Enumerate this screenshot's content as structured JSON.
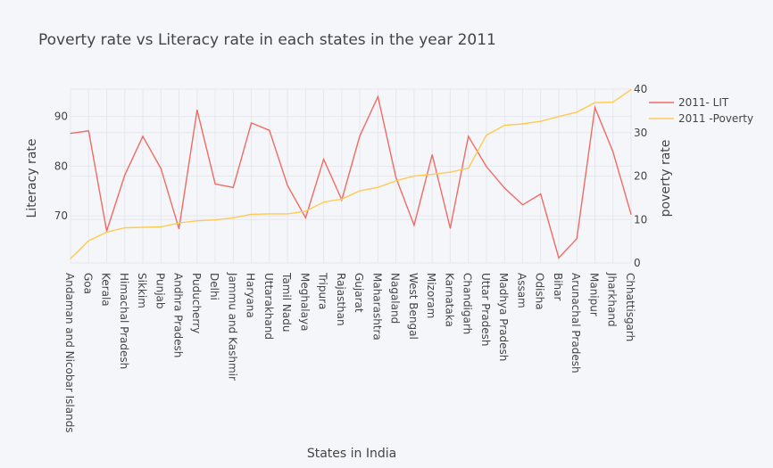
{
  "chart_data": {
    "type": "line",
    "title": "Poverty rate vs Literacy rate in each states in the year 2011",
    "xlabel": "States in India",
    "ylabel_left": "Literacy rate",
    "ylabel_right": "poverty rate",
    "ylim_left": [
      60.5,
      95.5
    ],
    "ylim_right": [
      0,
      40
    ],
    "yticks_left": [
      70,
      80,
      90
    ],
    "yticks_right": [
      0,
      10,
      20,
      30,
      40
    ],
    "categories": [
      "Andaman and Nicobar Islands",
      "Goa",
      "Kerala",
      "Himachal Pradesh",
      "Sikkim",
      "Punjab",
      "Andhra Pradesh",
      "Puducherry",
      "Delhi",
      "Jammu and Kashmir",
      "Haryana",
      "Uttarakhand",
      "Tamil Nadu",
      "Meghalaya",
      "Tripura",
      "Rajasthan",
      "Gujarat",
      "Maharashtra",
      "Nagaland",
      "West Bengal",
      "Mizoram",
      "Karnataka",
      "Chandigarh",
      "Uttar Pradesh",
      "Madhya Pradesh",
      "Assam",
      "Odisha",
      "Bihar",
      "Arunachal Pradesh",
      "Manipur",
      "Jharkhand",
      "Chhattisgarh"
    ],
    "series": [
      {
        "name": "2011- LIT",
        "axis": "left",
        "color": "#ef6b63",
        "values": [
          86.6,
          87.1,
          66.9,
          78.2,
          86.0,
          79.5,
          67.4,
          91.3,
          76.4,
          75.7,
          88.7,
          87.2,
          76.1,
          69.6,
          81.4,
          73.2,
          86.1,
          94.0,
          77.7,
          68.1,
          82.3,
          67.5,
          86.0,
          79.9,
          75.6,
          72.2,
          74.4,
          61.5,
          65.4,
          91.8,
          82.9,
          70.3
        ]
      },
      {
        "name": "2011 -Poverty",
        "axis": "right",
        "color": "#fecb52",
        "values": [
          1.0,
          5.1,
          7.1,
          8.1,
          8.2,
          8.3,
          9.2,
          9.7,
          9.9,
          10.4,
          11.2,
          11.3,
          11.3,
          11.9,
          14.0,
          14.7,
          16.6,
          17.4,
          18.9,
          20.0,
          20.4,
          20.9,
          21.8,
          29.4,
          31.7,
          32.0,
          32.6,
          33.7,
          34.7,
          36.9,
          37.0,
          39.9
        ]
      }
    ],
    "legend_position": "top-right",
    "grid": true
  }
}
